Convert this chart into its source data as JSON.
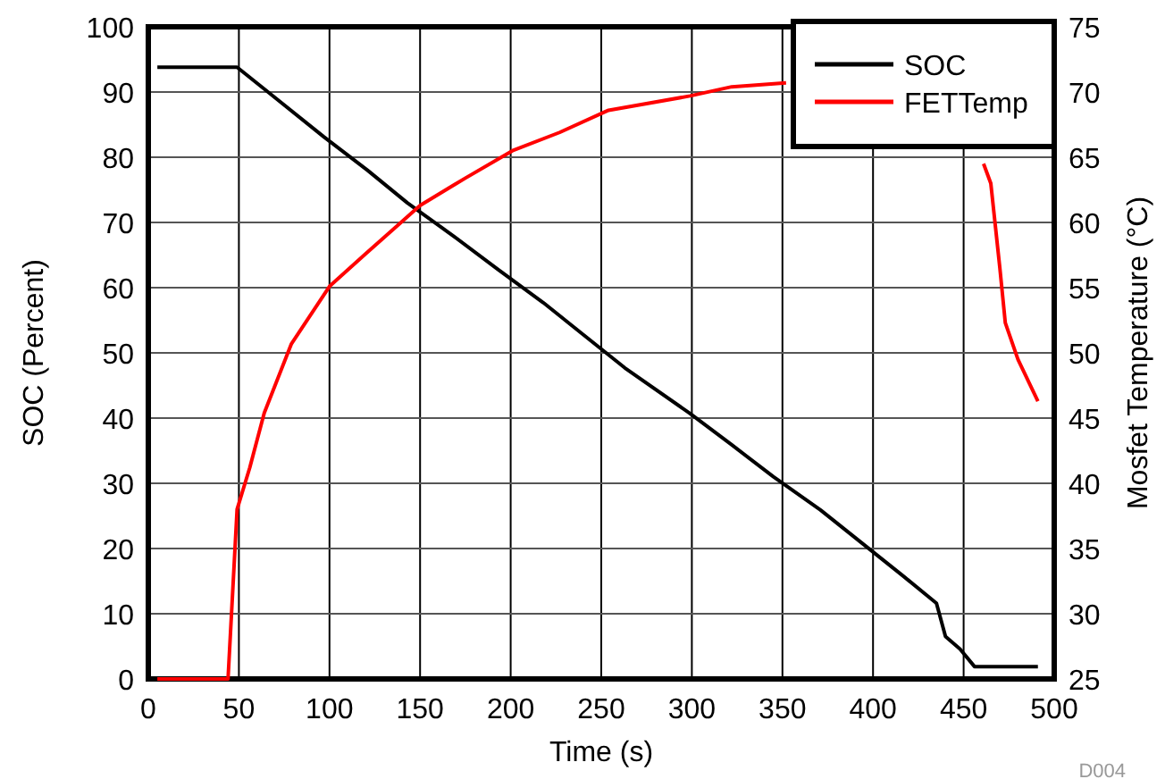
{
  "chart_data": {
    "type": "line",
    "xlabel": "Time (s)",
    "ylabel": "SOC (Percent)",
    "y2label": "Mosfet Temperature (°C)",
    "xlim": [
      0,
      500
    ],
    "xticks": [
      0,
      50,
      100,
      150,
      200,
      250,
      300,
      350,
      400,
      450,
      500
    ],
    "ylim": [
      0,
      100
    ],
    "yticks": [
      0,
      10,
      20,
      30,
      40,
      50,
      60,
      70,
      80,
      90,
      100
    ],
    "y2lim": [
      25,
      75
    ],
    "y2ticks": [
      25,
      30,
      35,
      40,
      45,
      50,
      55,
      60,
      65,
      70,
      75
    ],
    "grid": true,
    "legend": "top right",
    "line_style": "solid",
    "marker": "none",
    "annotations": [
      "D004"
    ],
    "series": [
      {
        "name": "SOC",
        "color": "#000000",
        "x": [
          5,
          49,
          67,
          97,
          121,
          143,
          169,
          193,
          218,
          240,
          263,
          299,
          322,
          345,
          371,
          394,
          417,
          435,
          440,
          448,
          456,
          491
        ],
        "values": [
          93.8,
          93.8,
          89.8,
          83.1,
          78,
          73,
          67.8,
          62.8,
          57.7,
          52.8,
          47.7,
          40.7,
          35.9,
          31,
          25.9,
          20.8,
          15.7,
          11.6,
          6.5,
          4.6,
          1.9,
          1.9
        ]
      },
      {
        "name": "FETTemp",
        "color": "#ff0000",
        "axis": "y2",
        "x": [
          5,
          20,
          44,
          49,
          56,
          64,
          79,
          100,
          120,
          150,
          175,
          201,
          227,
          254,
          299,
          322,
          352,
          400,
          461,
          465,
          470,
          473,
          480,
          491
        ],
        "values": [
          25,
          25,
          25,
          38,
          41.2,
          45.4,
          50.7,
          55.1,
          57.6,
          61.3,
          63.4,
          65.5,
          66.9,
          68.6,
          69.7,
          70.4,
          70.7,
          null,
          64.5,
          63,
          56.5,
          52.3,
          49.5,
          46.3
        ]
      }
    ]
  }
}
